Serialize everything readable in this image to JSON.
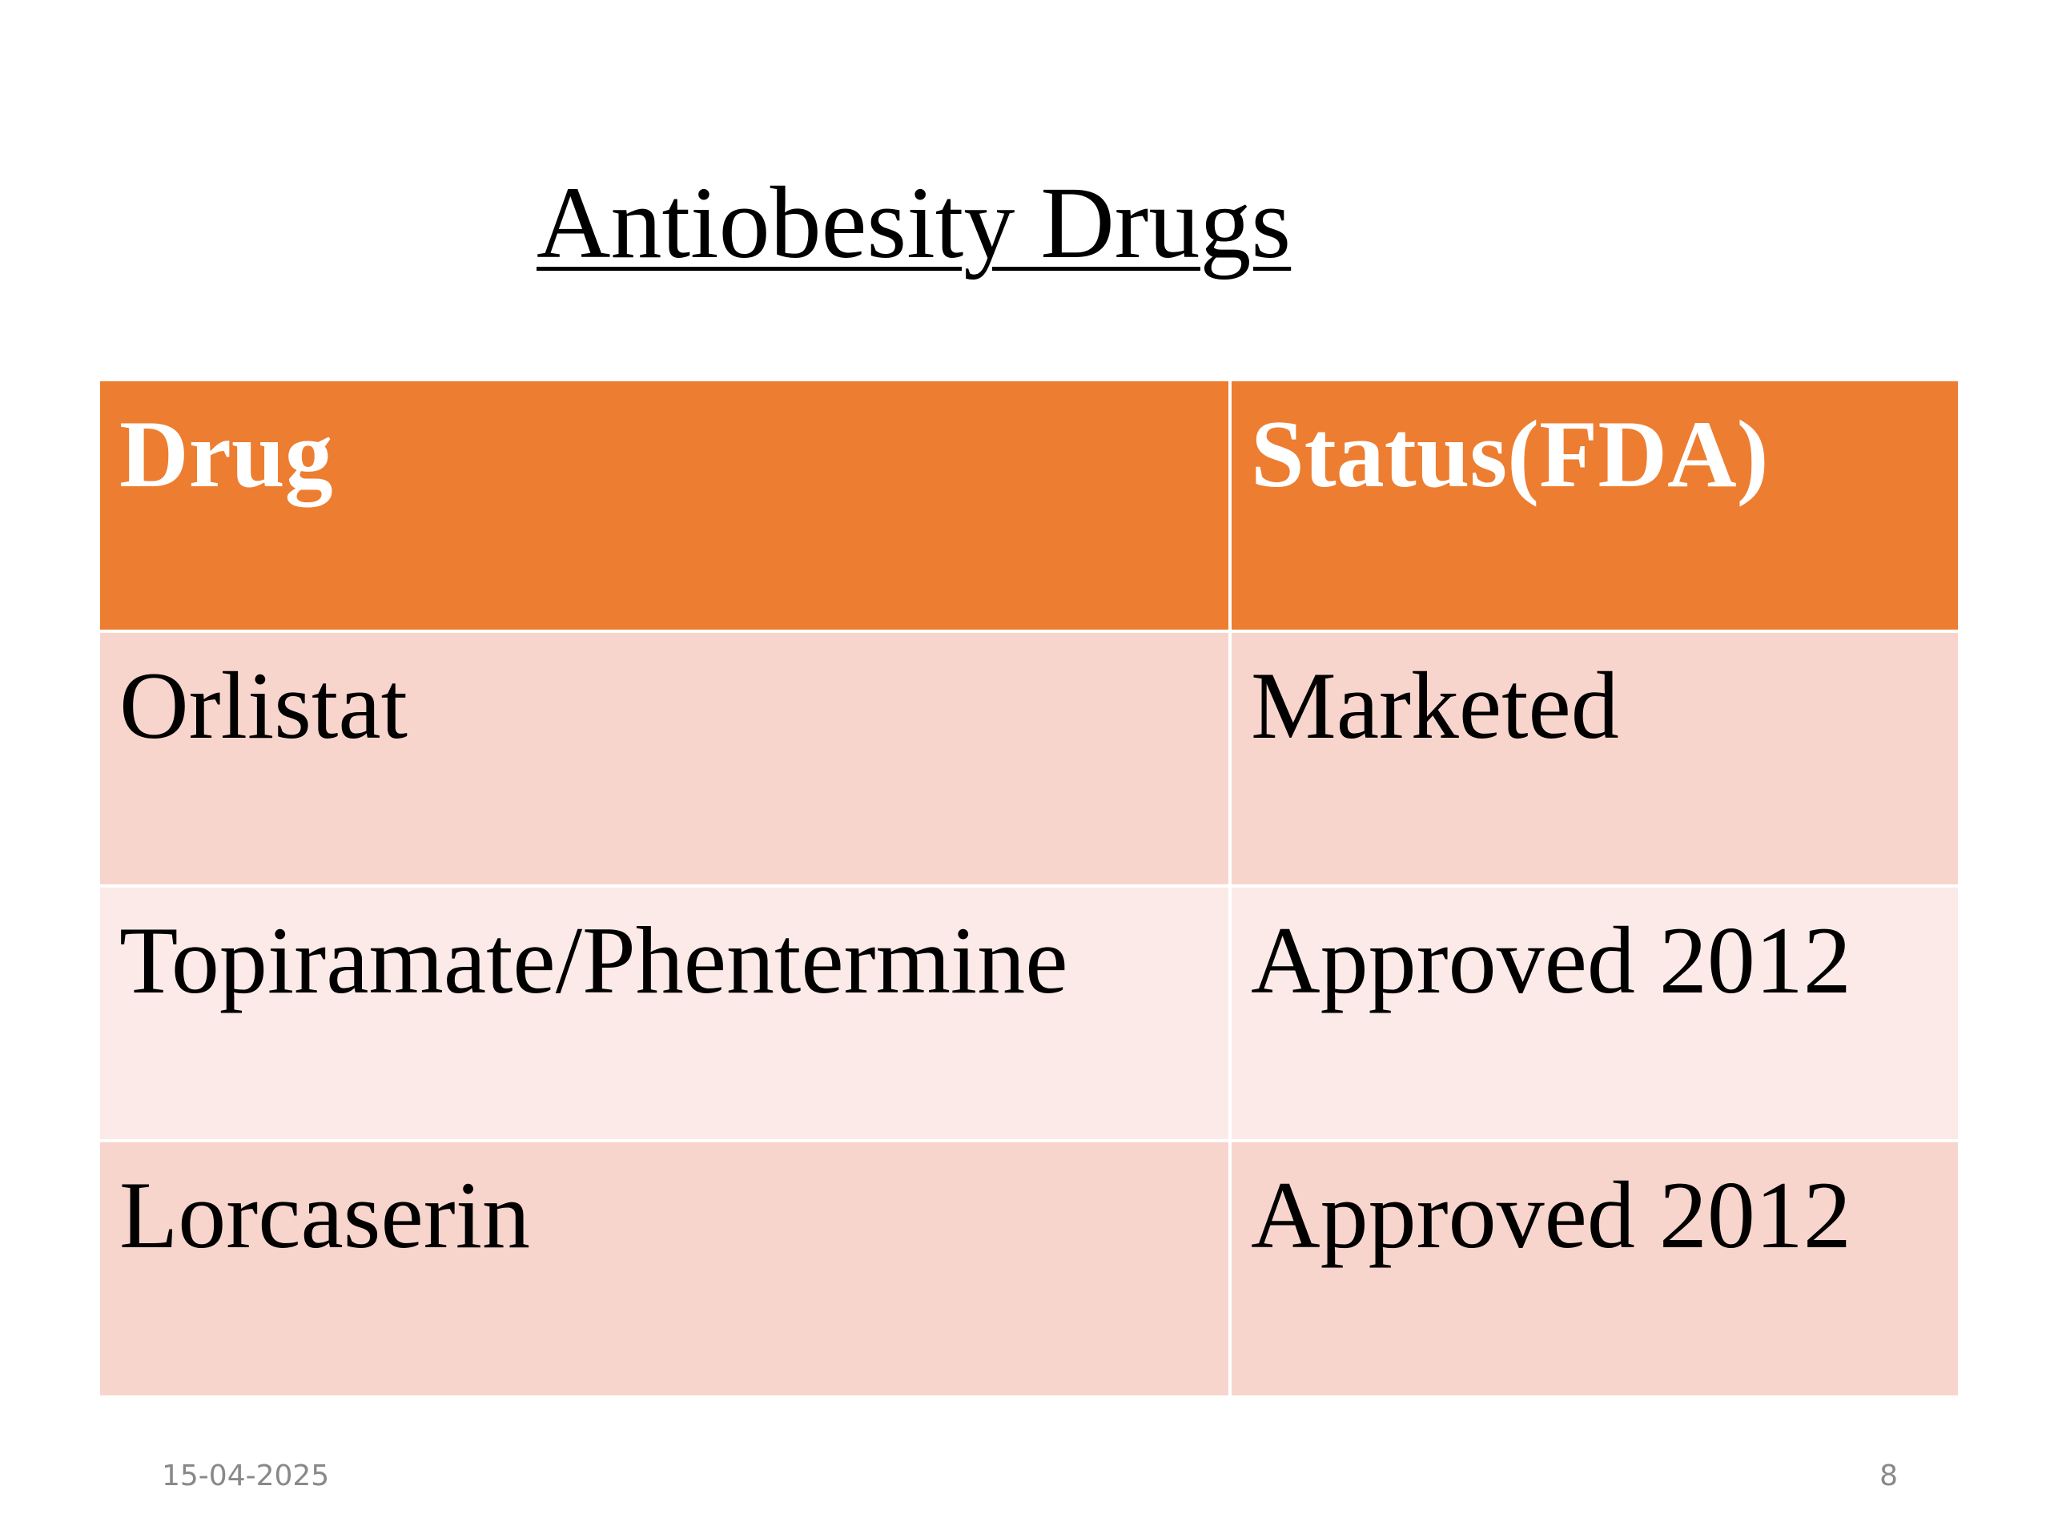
{
  "slide": {
    "title": "Antiobesity Drugs",
    "footer_date": "15-04-2025",
    "page_number": "8"
  },
  "table": {
    "headers": [
      "Drug",
      "Status(FDA)"
    ],
    "rows": [
      [
        "Orlistat",
        "Marketed"
      ],
      [
        "Topiramate/Phentermine",
        "Approved 2012"
      ],
      [
        "Lorcaserin",
        "Approved 2012"
      ]
    ]
  },
  "colors": {
    "header_bg": "#ED7D31",
    "row_band_dark": "#F8D5CC",
    "row_band_light": "#FBEAE7",
    "footer_text": "#898989"
  }
}
